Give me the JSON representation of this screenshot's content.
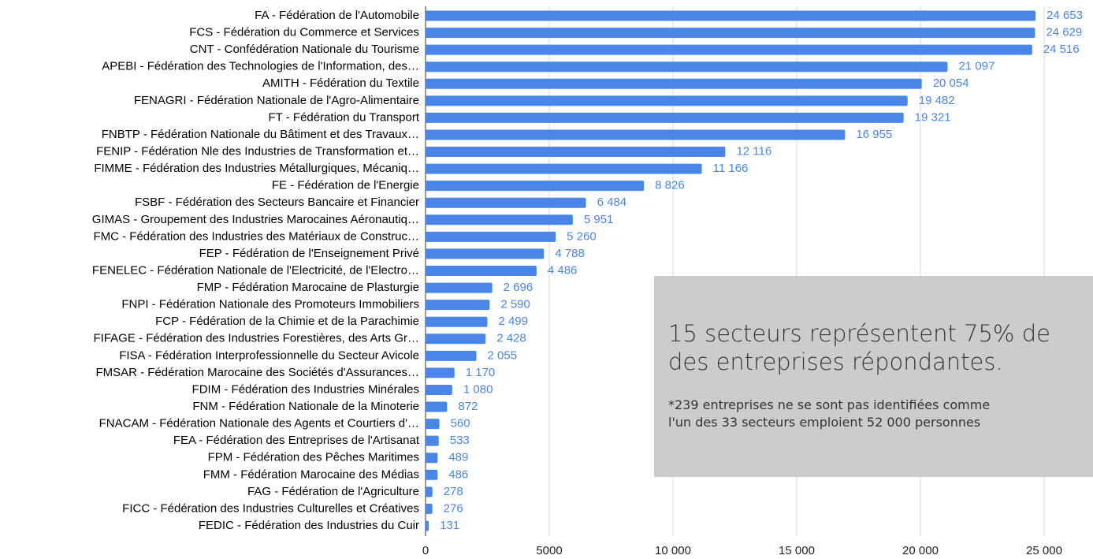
{
  "chart_data": {
    "type": "bar",
    "orientation": "horizontal",
    "color": "#4a86e8",
    "categories": [
      "FA - Fédération de l'Automobile",
      "FCS - Fédération du Commerce et Services",
      "CNT - Confédération Nationale du Tourisme",
      "APEBI - Fédération des Technologies de l'Information, des…",
      "AMITH - Fédération du Textile",
      "FENAGRI - Fédération Nationale de l'Agro-Alimentaire",
      "FT - Fédération du Transport",
      "FNBTP - Fédération Nationale du Bâtiment et des Travaux…",
      "FENIP - Fédération Nle des Industries de Transformation et…",
      "FIMME - Fédération des Industries Métallurgiques, Mécaniq…",
      "FE - Fédération de l'Energie",
      "FSBF - Fédération des Secteurs Bancaire et Financier",
      "GIMAS - Groupement des Industries Marocaines Aéronautiq…",
      "FMC - Fédération des Industries des Matériaux de Construc…",
      "FEP - Fédération de l'Enseignement Privé",
      "FENELEC - Fédération Nationale de l'Electricité, de l'Electro…",
      "FMP - Fédération Marocaine de Plasturgie",
      "FNPI - Fédération Nationale des Promoteurs Immobiliers",
      "FCP - Fédération de la Chimie et de la Parachimie",
      "FIFAGE - Fédération des Industries Forestières, des Arts Gr…",
      "FISA - Fédération Interprofessionnelle du Secteur Avicole",
      "FMSAR - Fédération Marocaine des Sociétés d'Assurances…",
      "FDIM - Fédération des Industries Minérales",
      "FNM - Fédération Nationale de la Minoterie",
      "FNACAM - Fédération Nationale des Agents et Courtiers d'…",
      "FEA - Fédération des Entreprises de l'Artisanat",
      "FPM - Fédération des Pêches Maritimes",
      "FMM - Fédération Marocaine des Médias",
      "FAG - Fédération de l'Agriculture",
      "FICC - Fédération des Industries Culturelles et Créatives",
      "FEDIC - Fédération des Industries du Cuir"
    ],
    "values": [
      24653,
      24629,
      24516,
      21097,
      20054,
      19482,
      19321,
      16955,
      12116,
      11166,
      8826,
      6484,
      5951,
      5260,
      4788,
      4486,
      2696,
      2590,
      2499,
      2428,
      2055,
      1170,
      1080,
      872,
      560,
      533,
      489,
      486,
      278,
      276,
      131
    ],
    "value_labels": [
      "24 653",
      "24 629",
      "24 516",
      "21 097",
      "20 054",
      "19 482",
      "19 321",
      "16 955",
      "12 116",
      "11 166",
      "8 826",
      "6 484",
      "5 951",
      "5 260",
      "4 788",
      "4 486",
      "2 696",
      "2 590",
      "2 499",
      "2 428",
      "2 055",
      "1 170",
      "1 080",
      "872",
      "560",
      "533",
      "489",
      "486",
      "278",
      "276",
      "131"
    ],
    "xlim": [
      0,
      27000
    ],
    "xticks": [
      0,
      5000,
      {
        "value": 10000,
        "label": "10 000"
      },
      {
        "value": 15000,
        "label": "15 000"
      },
      {
        "value": 20000,
        "label": "20 000"
      },
      {
        "value": 25000,
        "label": "25 000"
      }
    ],
    "grid": true,
    "annotations": [
      "15 secteurs représentent 75% de",
      "des entreprises répondantes.",
      "*239 entreprises ne se sont pas identifiées comme",
      "l'un des 33 secteurs emploient 52 000 personnes"
    ]
  }
}
